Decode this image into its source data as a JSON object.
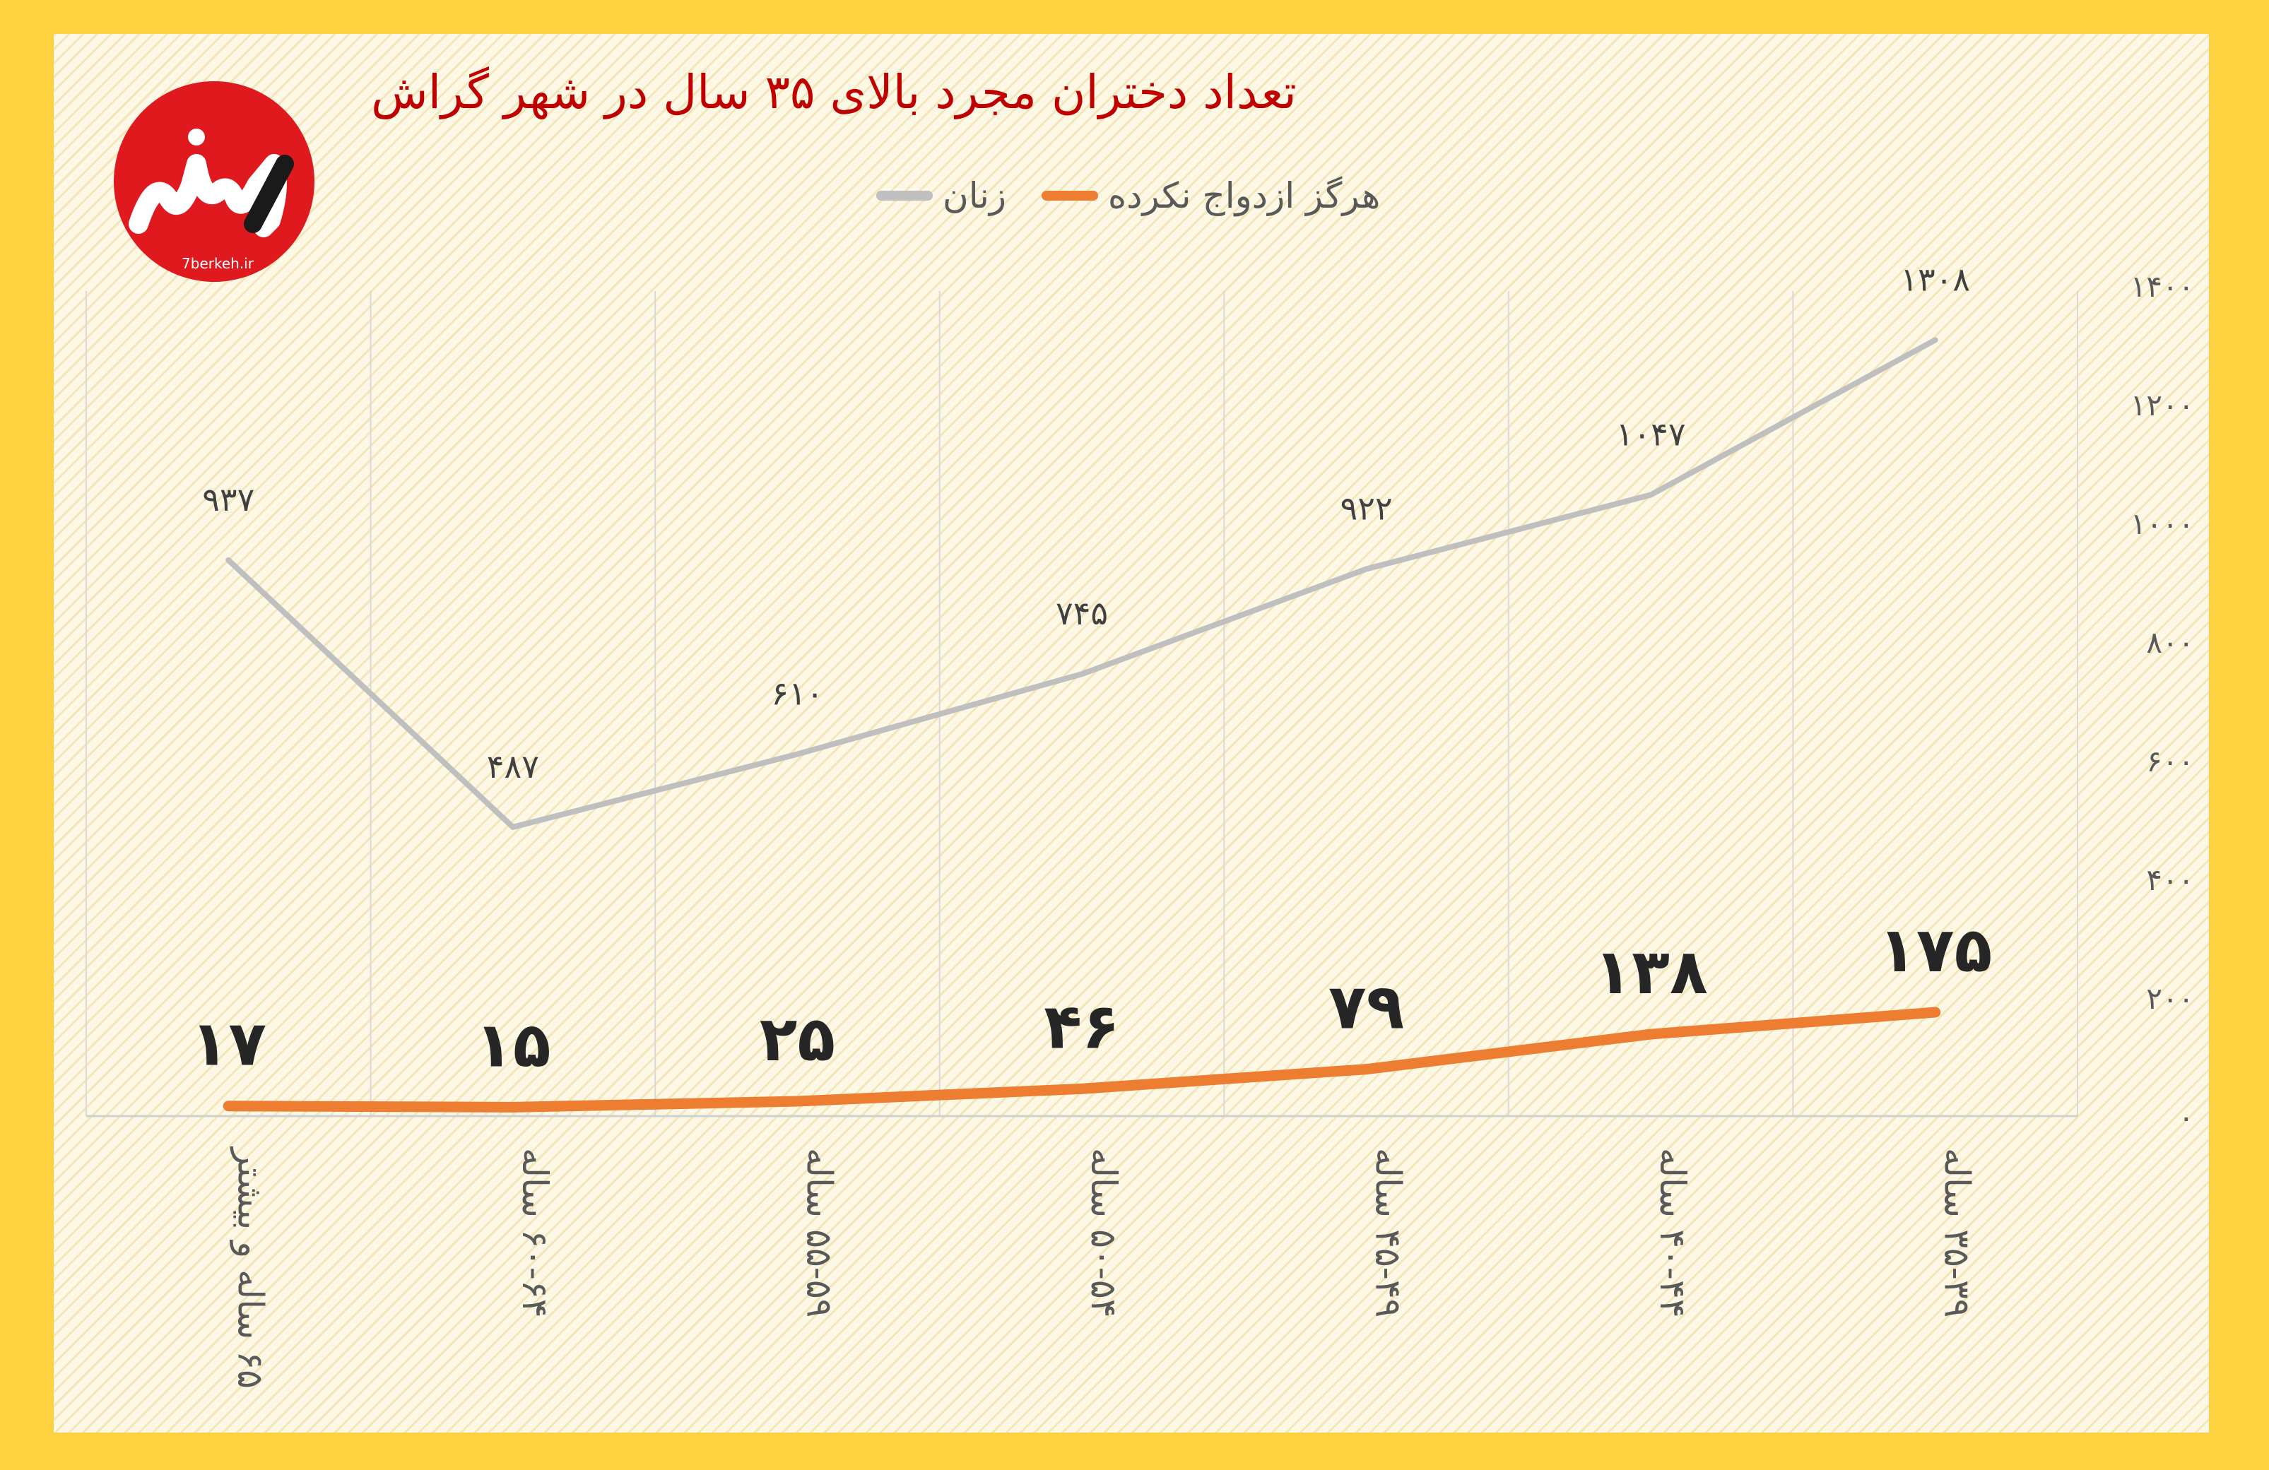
{
  "chart_data": {
    "type": "line",
    "title": "تعداد دختران مجرد بالای ۳۵ سال در شهر گراش",
    "categories": [
      "۶۵ ساله و بیشتر",
      "۶۰-۶۴ ساله",
      "۵۵-۵۹ ساله",
      "۵۰-۵۴ ساله",
      "۴۵-۴۹ ساله",
      "۴۰-۴۴ ساله",
      "۳۵-۳۹ ساله"
    ],
    "series": [
      {
        "name": "زنان",
        "color": "#BFBFBF",
        "values": [
          937,
          487,
          610,
          745,
          922,
          1047,
          1308
        ],
        "labels": [
          "۹۳۷",
          "۴۸۷",
          "۶۱۰",
          "۷۴۵",
          "۹۲۲",
          "۱۰۴۷",
          "۱۳۰۸"
        ]
      },
      {
        "name": "هرگز ازدواج نکرده",
        "color": "#ED7D31",
        "values": [
          17,
          15,
          25,
          46,
          79,
          138,
          175
        ],
        "labels": [
          "۱۷",
          "۱۵",
          "۲۵",
          "۴۶",
          "۷۹",
          "۱۳۸",
          "۱۷۵"
        ]
      }
    ],
    "ylim": [
      0,
      1400
    ],
    "yticks": [
      0,
      200,
      400,
      600,
      800,
      1000,
      1200,
      1400
    ],
    "ytick_labels": [
      "۰",
      "۲۰۰",
      "۴۰۰",
      "۶۰۰",
      "۸۰۰",
      "۱۰۰۰",
      "۱۲۰۰",
      "۱۴۰۰"
    ],
    "y_axis_side": "right",
    "grid": "vertical",
    "legend_position": "top"
  },
  "logo": {
    "name": "7berkeh logo",
    "text": "7berkeh.ir",
    "color": "#E0191E"
  }
}
